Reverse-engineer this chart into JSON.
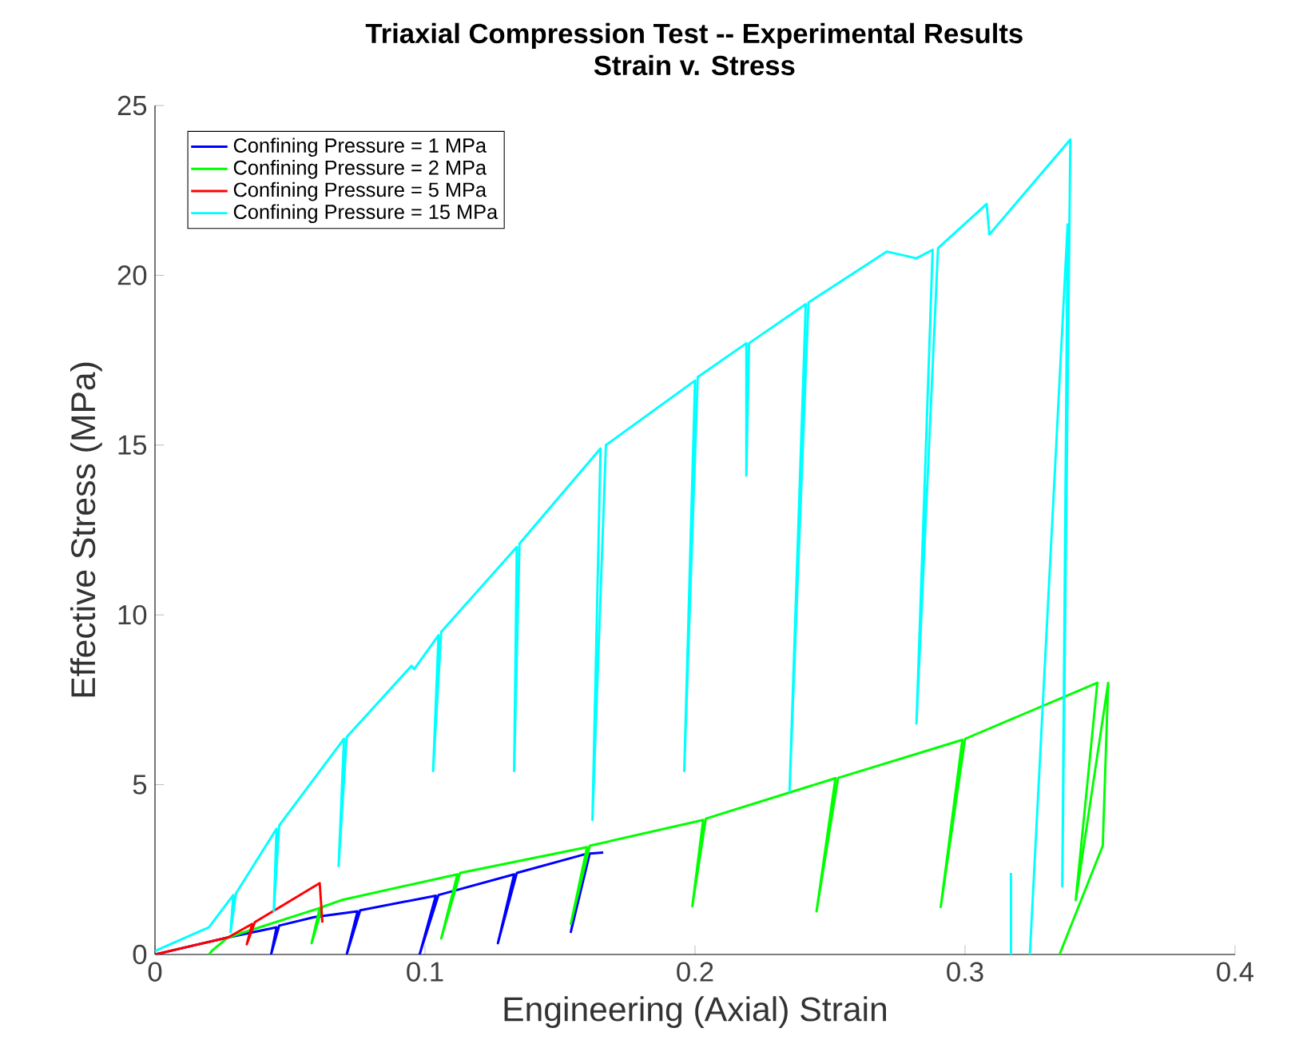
{
  "chart_data": {
    "type": "line",
    "title": "Triaxial Compression Test -- Experimental Results",
    "subtitle": "Strain v. Stress",
    "xlabel": "Engineering (Axial) Strain",
    "ylabel": "Effective Stress (MPa)",
    "xlim": [
      0,
      0.4
    ],
    "ylim": [
      0,
      25
    ],
    "xticks": [
      0,
      0.1,
      0.2,
      0.3,
      0.4
    ],
    "yticks": [
      0,
      5,
      10,
      15,
      20,
      25
    ],
    "grid": false,
    "legend": "top left",
    "line_style": "solid",
    "series": [
      {
        "name": "Confining Pressure = 1 MPa",
        "color": "#0000ff",
        "x": [
          0.0,
          0.027,
          0.045,
          0.043,
          0.046,
          0.059,
          0.075,
          0.071,
          0.076,
          0.104,
          0.098,
          0.105,
          0.133,
          0.127,
          0.134,
          0.16,
          0.154,
          0.161,
          0.166
        ],
        "values": [
          0.0,
          0.5,
          0.8,
          0.0,
          0.85,
          1.1,
          1.27,
          0.0,
          1.3,
          1.73,
          0.0,
          1.75,
          2.36,
          0.33,
          2.4,
          2.97,
          0.66,
          2.97,
          3.0
        ]
      },
      {
        "name": "Confining Pressure = 2 MPa",
        "color": "#00ff00",
        "x": [
          0.02,
          0.021,
          0.027,
          0.061,
          0.058,
          0.062,
          0.069,
          0.112,
          0.106,
          0.113,
          0.16,
          0.154,
          0.161,
          0.203,
          0.199,
          0.204,
          0.252,
          0.245,
          0.253,
          0.299,
          0.291,
          0.3,
          0.349,
          0.341,
          0.353,
          0.351,
          0.335
        ],
        "values": [
          0.0,
          0.1,
          0.5,
          1.37,
          0.33,
          1.4,
          1.6,
          2.36,
          0.47,
          2.4,
          3.16,
          0.9,
          3.2,
          3.96,
          1.42,
          4.0,
          5.19,
          1.27,
          5.2,
          6.32,
          1.4,
          6.35,
          8.0,
          1.6,
          8.0,
          3.2,
          0.0
        ]
      },
      {
        "name": "Confining Pressure = 5 MPa",
        "color": "#ff0000",
        "x": [
          0.0,
          0.027,
          0.036,
          0.034,
          0.037,
          0.061,
          0.062
        ],
        "values": [
          0.0,
          0.5,
          0.9,
          0.3,
          0.95,
          2.1,
          0.94
        ]
      },
      {
        "name": "Confining Pressure = 15 MPa",
        "color": "#00ffff",
        "x": [
          0.0,
          0.02,
          0.029,
          0.028,
          0.03,
          0.045,
          0.044,
          0.046,
          0.07,
          0.068,
          0.071,
          0.095,
          0.096,
          0.105,
          0.103,
          0.106,
          0.134,
          0.133,
          0.135,
          0.165,
          0.162,
          0.167,
          0.2,
          0.196,
          0.201,
          0.219,
          0.219,
          0.22,
          0.241,
          0.235,
          0.242,
          0.271,
          0.282,
          0.288,
          0.282,
          0.29,
          0.308,
          0.309,
          0.339,
          0.336,
          0.338,
          0.324,
          null,
          0.317,
          0.317
        ],
        "values": [
          0.1,
          0.8,
          1.75,
          0.66,
          1.8,
          3.7,
          1.27,
          3.8,
          6.35,
          2.6,
          6.4,
          8.5,
          8.4,
          9.4,
          5.4,
          9.5,
          12.0,
          5.4,
          12.1,
          14.9,
          3.96,
          15.0,
          16.9,
          5.4,
          17.0,
          18.0,
          14.1,
          18.0,
          19.15,
          4.8,
          19.2,
          20.7,
          20.5,
          20.75,
          6.8,
          20.8,
          22.1,
          21.2,
          24.0,
          2.0,
          21.5,
          0.0,
          null,
          2.4,
          0.0
        ]
      }
    ]
  }
}
